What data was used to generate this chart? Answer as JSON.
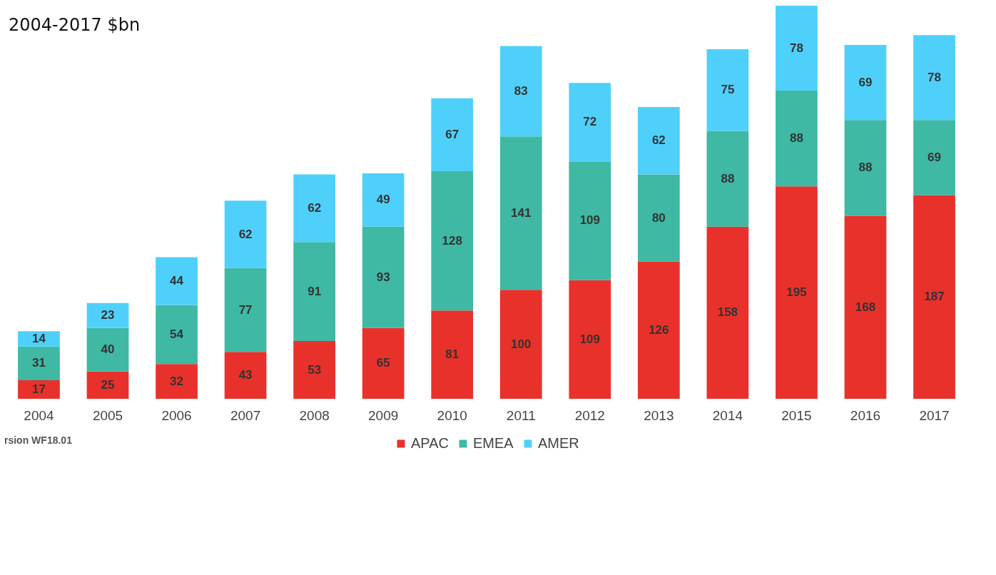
{
  "chart_data": {
    "type": "bar",
    "title": "2004-2017 $bn",
    "stacked": true,
    "data_labels": true,
    "legend": "bottom",
    "grid": false,
    "categories": [
      "2004",
      "2005",
      "2006",
      "2007",
      "2008",
      "2009",
      "2010",
      "2011",
      "2012",
      "2013",
      "2014",
      "2015",
      "2016",
      "2017"
    ],
    "series": [
      {
        "name": "APAC",
        "color": "#e8312a",
        "values": [
          17,
          25,
          32,
          43,
          53,
          65,
          81,
          100,
          109,
          126,
          158,
          195,
          168,
          187
        ]
      },
      {
        "name": "EMEA",
        "color": "#3fb8a4",
        "values": [
          31,
          40,
          54,
          77,
          91,
          93,
          128,
          141,
          109,
          80,
          88,
          88,
          88,
          69
        ]
      },
      {
        "name": "AMER",
        "color": "#4fd0fb",
        "values": [
          14,
          23,
          44,
          62,
          62,
          49,
          67,
          83,
          72,
          62,
          75,
          78,
          69,
          78
        ]
      }
    ],
    "annotations": [
      "rsion WF18.01"
    ]
  }
}
